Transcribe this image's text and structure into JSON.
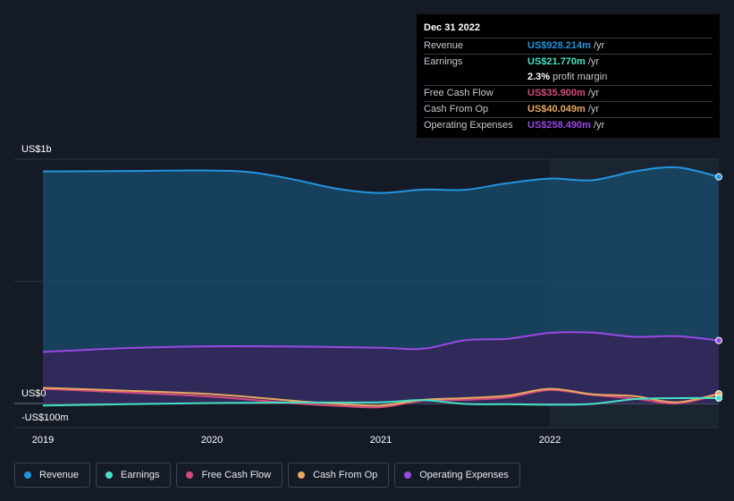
{
  "chart_data": {
    "type": "area",
    "y_axis_labels": {
      "top": "US$1b",
      "zero": "US$0",
      "bottom": "-US$100m"
    },
    "ylim": [
      -100,
      1000
    ],
    "x_ticks": [
      "2019",
      "2020",
      "2021",
      "2022"
    ],
    "x_tick_values": [
      2019.0,
      2020.0,
      2021.0,
      2022.0
    ],
    "xlim": [
      2019.0,
      2023.0
    ],
    "grid": true,
    "legend_position": "bottom-left",
    "highlight_start": 2022.0,
    "series": [
      {
        "name": "Revenue",
        "color": "#2394df",
        "fill": "#174a6b",
        "points": [
          [
            2019.0,
            950
          ],
          [
            2019.5,
            952
          ],
          [
            2020.0,
            954
          ],
          [
            2020.25,
            945
          ],
          [
            2020.5,
            915
          ],
          [
            2020.75,
            878
          ],
          [
            2021.0,
            862
          ],
          [
            2021.25,
            876
          ],
          [
            2021.5,
            875
          ],
          [
            2021.75,
            902
          ],
          [
            2022.0,
            921
          ],
          [
            2022.25,
            914
          ],
          [
            2022.5,
            950
          ],
          [
            2022.75,
            967
          ],
          [
            2023.0,
            928
          ]
        ]
      },
      {
        "name": "Operating Expenses",
        "color": "#9a48e5",
        "fill": "#37245a",
        "points": [
          [
            2019.0,
            211
          ],
          [
            2019.5,
            227
          ],
          [
            2020.0,
            234
          ],
          [
            2020.5,
            233
          ],
          [
            2021.0,
            228
          ],
          [
            2021.25,
            224
          ],
          [
            2021.5,
            259
          ],
          [
            2021.75,
            265
          ],
          [
            2022.0,
            289
          ],
          [
            2022.25,
            290
          ],
          [
            2022.5,
            273
          ],
          [
            2022.75,
            276
          ],
          [
            2023.0,
            258
          ]
        ]
      },
      {
        "name": "Free Cash Flow",
        "color": "#d44a7e",
        "fill": "none",
        "points": [
          [
            2019.0,
            60
          ],
          [
            2019.5,
            45
          ],
          [
            2020.0,
            28
          ],
          [
            2020.5,
            0
          ],
          [
            2020.75,
            -10
          ],
          [
            2021.0,
            -15
          ],
          [
            2021.25,
            12
          ],
          [
            2021.5,
            15
          ],
          [
            2021.75,
            25
          ],
          [
            2022.0,
            55
          ],
          [
            2022.25,
            35
          ],
          [
            2022.5,
            20
          ],
          [
            2022.75,
            0
          ],
          [
            2023.0,
            36
          ]
        ]
      },
      {
        "name": "Cash From Op",
        "color": "#e8a863",
        "fill": "none",
        "points": [
          [
            2019.0,
            64
          ],
          [
            2019.5,
            52
          ],
          [
            2020.0,
            38
          ],
          [
            2020.5,
            10
          ],
          [
            2020.75,
            -2
          ],
          [
            2021.0,
            -8
          ],
          [
            2021.25,
            15
          ],
          [
            2021.5,
            22
          ],
          [
            2021.75,
            32
          ],
          [
            2022.0,
            60
          ],
          [
            2022.25,
            38
          ],
          [
            2022.5,
            30
          ],
          [
            2022.75,
            5
          ],
          [
            2023.0,
            40
          ]
        ]
      },
      {
        "name": "Earnings",
        "color": "#46e0c6",
        "fill": "none",
        "points": [
          [
            2019.0,
            -8
          ],
          [
            2019.5,
            -3
          ],
          [
            2020.0,
            2
          ],
          [
            2020.5,
            4
          ],
          [
            2021.0,
            5
          ],
          [
            2021.25,
            14
          ],
          [
            2021.5,
            -2
          ],
          [
            2021.75,
            -3
          ],
          [
            2022.0,
            -5
          ],
          [
            2022.25,
            -2
          ],
          [
            2022.5,
            18
          ],
          [
            2022.75,
            22
          ],
          [
            2023.0,
            22
          ]
        ]
      }
    ]
  },
  "tooltip": {
    "date": "Dec 31 2022",
    "rows": [
      {
        "label": "Revenue",
        "value": "US$928.214m",
        "unit": "/yr",
        "color": "#2394df"
      },
      {
        "label": "Earnings",
        "value": "US$21.770m",
        "unit": "/yr",
        "color": "#46e0c6"
      },
      {
        "label": "",
        "value": "2.3%",
        "unit": "profit margin",
        "color": "#ffffff"
      },
      {
        "label": "Free Cash Flow",
        "value": "US$35.900m",
        "unit": "/yr",
        "color": "#d44a7e"
      },
      {
        "label": "Cash From Op",
        "value": "US$40.049m",
        "unit": "/yr",
        "color": "#e8a863"
      },
      {
        "label": "Operating Expenses",
        "value": "US$258.490m",
        "unit": "/yr",
        "color": "#9a48e5"
      }
    ]
  },
  "legend": [
    {
      "label": "Revenue",
      "color": "#2394df"
    },
    {
      "label": "Earnings",
      "color": "#46e0c6"
    },
    {
      "label": "Free Cash Flow",
      "color": "#d44a7e"
    },
    {
      "label": "Cash From Op",
      "color": "#e8a863"
    },
    {
      "label": "Operating Expenses",
      "color": "#9a48e5"
    }
  ]
}
